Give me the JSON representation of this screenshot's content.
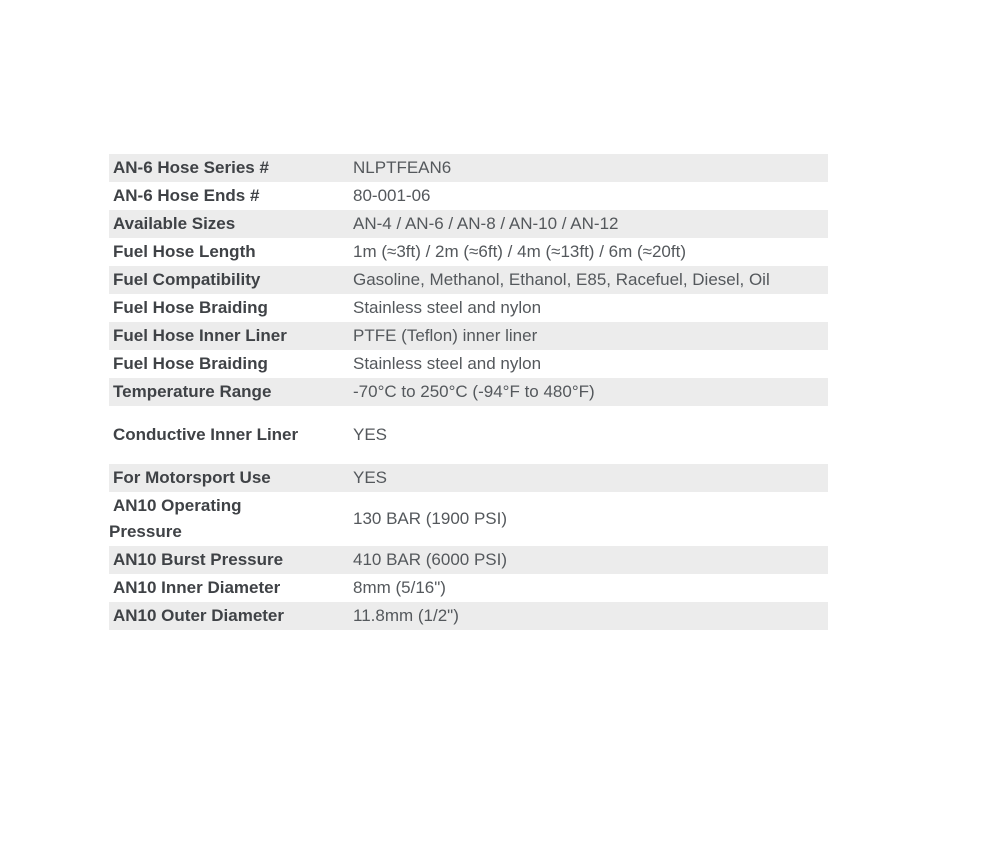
{
  "page": {
    "background_color": "#ffffff"
  },
  "table": {
    "name": "fuel-hose-specifications",
    "stripe_color": "#ececec",
    "label_color": "#3f4246",
    "value_color": "#54585c",
    "rows": [
      {
        "label": "AN-6 Hose Series #",
        "value": "NLPTFEAN6"
      },
      {
        "label": "AN-6 Hose Ends #",
        "value": "80-001-06"
      },
      {
        "label": "Available Sizes",
        "value": "AN-4 / AN-6 / AN-8 / AN-10 / AN-12"
      },
      {
        "label": "Fuel Hose Length",
        "value": "1m (≈3ft) / 2m (≈6ft) / 4m (≈13ft) / 6m (≈20ft)"
      },
      {
        "label": "Fuel Compatibility",
        "value": "Gasoline, Methanol, Ethanol, E85, Racefuel, Diesel, Oil"
      },
      {
        "label": "Fuel Hose Braiding",
        "value": "Stainless steel and nylon"
      },
      {
        "label": "Fuel Hose Inner Liner",
        "value": "PTFE (Teflon) inner liner"
      },
      {
        "label": "Fuel Hose Braiding",
        "value": "Stainless steel and nylon"
      },
      {
        "label": "Temperature Range",
        "value": "-70°C to 250°C (-94°F to 480°F)"
      },
      {
        "label": "Conductive Inner Liner",
        "value": "YES"
      },
      {
        "label": "For Motorsport Use",
        "value": "YES"
      },
      {
        "label": "AN10 Operating Pressure",
        "value": "130 BAR (1900 PSI)"
      },
      {
        "label": "AN10 Burst Pressure",
        "value": "410 BAR (6000 PSI)"
      },
      {
        "label": "AN10 Inner Diameter",
        "value": "8mm (5/16\")"
      },
      {
        "label": "AN10 Outer Diameter",
        "value": "11.8mm (1/2\")"
      }
    ]
  }
}
